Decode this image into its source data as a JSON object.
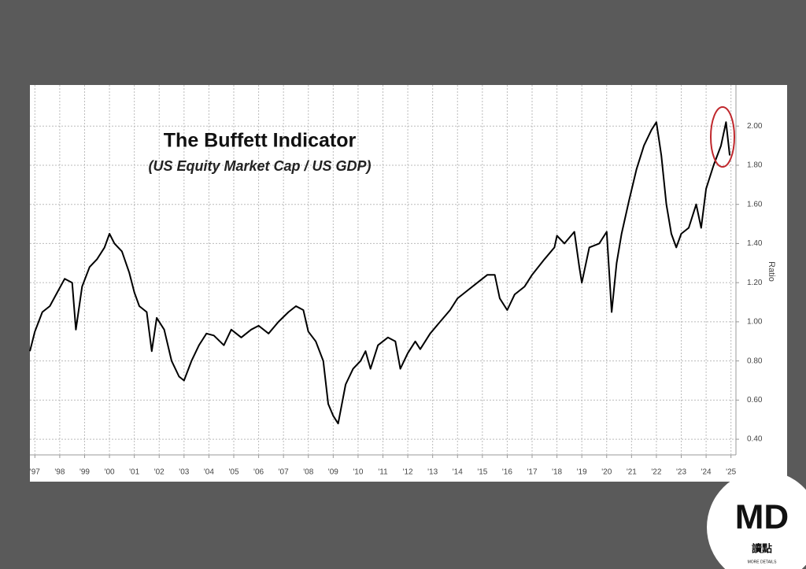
{
  "chart_data": {
    "type": "line",
    "title": "The Buffett Indicator",
    "subtitle": "(US Equity Market Cap / US GDP)",
    "y_label": "Ratio",
    "color": "#000000",
    "grid": true,
    "x": [
      1996.8,
      1997.0,
      1997.3,
      1997.6,
      1997.9,
      1998.2,
      1998.5,
      1998.65,
      1998.9,
      1999.2,
      1999.5,
      1999.8,
      2000.0,
      2000.2,
      2000.5,
      2000.8,
      2001.0,
      2001.2,
      2001.5,
      2001.7,
      2001.9,
      2002.2,
      2002.5,
      2002.8,
      2003.0,
      2003.3,
      2003.6,
      2003.9,
      2004.2,
      2004.6,
      2004.9,
      2005.3,
      2005.7,
      2006.0,
      2006.4,
      2006.8,
      2007.2,
      2007.5,
      2007.8,
      2008.0,
      2008.3,
      2008.6,
      2008.8,
      2009.0,
      2009.2,
      2009.5,
      2009.8,
      2010.1,
      2010.3,
      2010.5,
      2010.8,
      2011.2,
      2011.5,
      2011.7,
      2012.0,
      2012.3,
      2012.5,
      2012.9,
      2013.3,
      2013.7,
      2014.0,
      2014.4,
      2014.8,
      2015.2,
      2015.5,
      2015.7,
      2016.0,
      2016.3,
      2016.7,
      2017.0,
      2017.5,
      2017.9,
      2018.0,
      2018.3,
      2018.7,
      2018.9,
      2019.0,
      2019.3,
      2019.7,
      2020.0,
      2020.2,
      2020.4,
      2020.6,
      2020.9,
      2021.2,
      2021.5,
      2021.8,
      2022.0,
      2022.2,
      2022.4,
      2022.6,
      2022.8,
      2023.0,
      2023.3,
      2023.6,
      2023.8,
      2024.0,
      2024.3,
      2024.6,
      2024.8,
      2024.95
    ],
    "values": [
      0.85,
      0.95,
      1.05,
      1.08,
      1.15,
      1.22,
      1.2,
      0.96,
      1.18,
      1.28,
      1.32,
      1.38,
      1.45,
      1.4,
      1.36,
      1.25,
      1.15,
      1.08,
      1.05,
      0.85,
      1.02,
      0.96,
      0.8,
      0.72,
      0.7,
      0.8,
      0.88,
      0.94,
      0.93,
      0.88,
      0.96,
      0.92,
      0.96,
      0.98,
      0.94,
      1.0,
      1.05,
      1.08,
      1.06,
      0.95,
      0.9,
      0.8,
      0.58,
      0.52,
      0.48,
      0.68,
      0.76,
      0.8,
      0.85,
      0.76,
      0.88,
      0.92,
      0.9,
      0.76,
      0.84,
      0.9,
      0.86,
      0.94,
      1.0,
      1.06,
      1.12,
      1.16,
      1.2,
      1.24,
      1.24,
      1.12,
      1.06,
      1.14,
      1.18,
      1.24,
      1.32,
      1.38,
      1.44,
      1.4,
      1.46,
      1.28,
      1.2,
      1.38,
      1.4,
      1.46,
      1.05,
      1.3,
      1.45,
      1.62,
      1.78,
      1.9,
      1.98,
      2.02,
      1.85,
      1.6,
      1.45,
      1.38,
      1.45,
      1.48,
      1.6,
      1.48,
      1.68,
      1.8,
      1.9,
      2.02,
      1.85
    ],
    "xlim": [
      1996.8,
      2025.2
    ],
    "xticks": [
      {
        "value": 1997,
        "label": "'97"
      },
      {
        "value": 1998,
        "label": "'98"
      },
      {
        "value": 1999,
        "label": "'99"
      },
      {
        "value": 2000,
        "label": "'00"
      },
      {
        "value": 2001,
        "label": "'01"
      },
      {
        "value": 2002,
        "label": "'02"
      },
      {
        "value": 2003,
        "label": "'03"
      },
      {
        "value": 2004,
        "label": "'04"
      },
      {
        "value": 2005,
        "label": "'05"
      },
      {
        "value": 2006,
        "label": "'06"
      },
      {
        "value": 2007,
        "label": "'07"
      },
      {
        "value": 2008,
        "label": "'08"
      },
      {
        "value": 2009,
        "label": "'09"
      },
      {
        "value": 2010,
        "label": "'10"
      },
      {
        "value": 2011,
        "label": "'11"
      },
      {
        "value": 2012,
        "label": "'12"
      },
      {
        "value": 2013,
        "label": "'13"
      },
      {
        "value": 2014,
        "label": "'14"
      },
      {
        "value": 2015,
        "label": "'15"
      },
      {
        "value": 2016,
        "label": "'16"
      },
      {
        "value": 2017,
        "label": "'17"
      },
      {
        "value": 2018,
        "label": "'18"
      },
      {
        "value": 2019,
        "label": "'19"
      },
      {
        "value": 2020,
        "label": "'20"
      },
      {
        "value": 2021,
        "label": "'21"
      },
      {
        "value": 2022,
        "label": "'22"
      },
      {
        "value": 2023,
        "label": "'23"
      },
      {
        "value": 2024,
        "label": "'24"
      },
      {
        "value": 2025,
        "label": "'25"
      }
    ],
    "ylim": [
      0.32,
      2.21
    ],
    "yticks": [
      {
        "value": 0.4,
        "label": "0.40"
      },
      {
        "value": 0.6,
        "label": "0.60"
      },
      {
        "value": 0.8,
        "label": "0.80"
      },
      {
        "value": 1.0,
        "label": "1.00"
      },
      {
        "value": 1.2,
        "label": "1.20"
      },
      {
        "value": 1.4,
        "label": "1.40"
      },
      {
        "value": 1.6,
        "label": "1.60"
      },
      {
        "value": 1.8,
        "label": "1.80"
      },
      {
        "value": 2.0,
        "label": "2.00"
      }
    ]
  },
  "logo": {
    "mark": "MD",
    "chinese": "讀點",
    "tagline": "MORE DETAILS"
  }
}
